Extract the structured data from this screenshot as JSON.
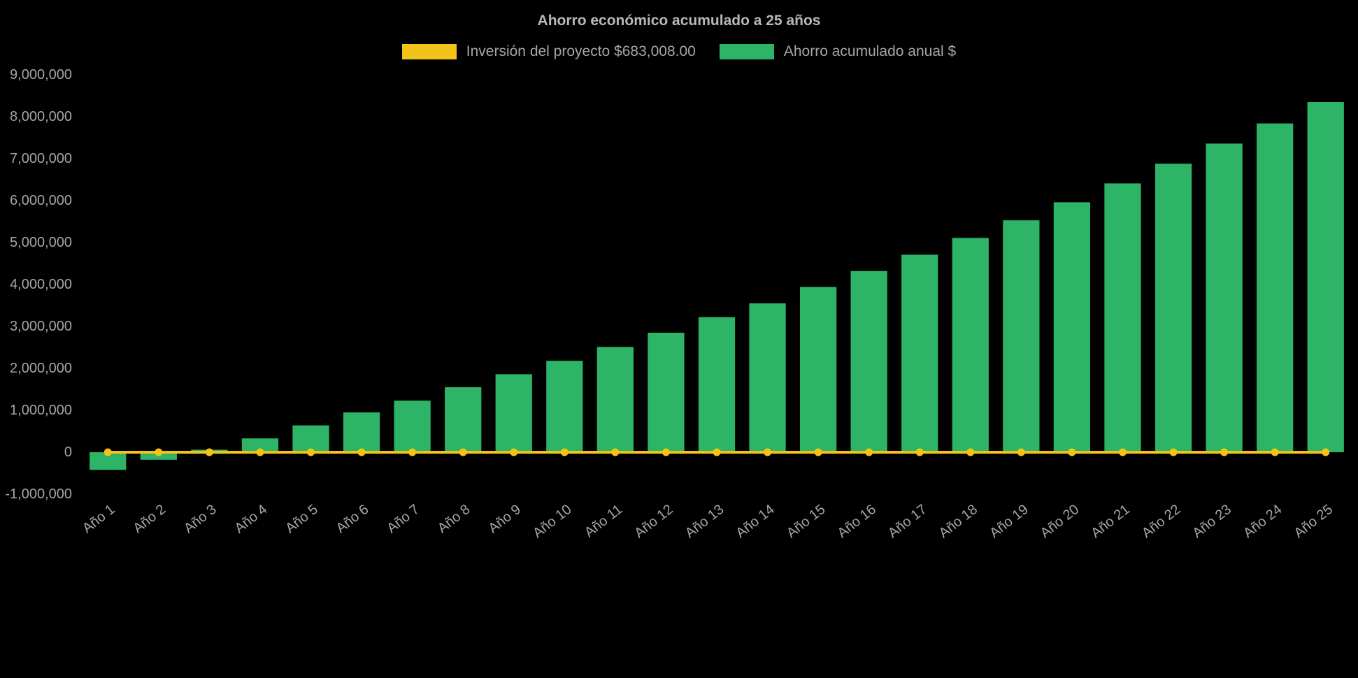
{
  "chart_data": {
    "type": "bar",
    "title": "Ahorro económico acumulado a 25 años",
    "categories": [
      "Año 1",
      "Año 2",
      "Año 3",
      "Año 4",
      "Año 5",
      "Año 6",
      "Año 7",
      "Año 8",
      "Año 9",
      "Año 10",
      "Año 11",
      "Año 12",
      "Año 13",
      "Año 14",
      "Año 15",
      "Año 16",
      "Año 17",
      "Año 18",
      "Año 19",
      "Año 20",
      "Año 21",
      "Año 22",
      "Año 23",
      "Año 24",
      "Año 25"
    ],
    "series": [
      {
        "name": "Inversión del proyecto $683,008.00",
        "type": "line",
        "color": "#F2C318",
        "value": 0
      },
      {
        "name": "Ahorro acumulado anual $",
        "type": "bar",
        "color": "#2EB467",
        "values": [
          -420000,
          -180000,
          60000,
          330000,
          640000,
          950000,
          1230000,
          1550000,
          1860000,
          2180000,
          2510000,
          2850000,
          3220000,
          3550000,
          3940000,
          4320000,
          4710000,
          5110000,
          5530000,
          5960000,
          6410000,
          6880000,
          7360000,
          7840000,
          8350000
        ]
      }
    ],
    "ylim": [
      -1000000,
      9000000
    ],
    "ytick_step": 1000000,
    "ytick_labels": [
      "-1,000,000",
      "0",
      "1,000,000",
      "2,000,000",
      "3,000,000",
      "4,000,000",
      "5,000,000",
      "6,000,000",
      "7,000,000",
      "8,000,000",
      "9,000,000"
    ],
    "grid": false,
    "legend_position": "top",
    "background_color": "#000000",
    "text_color": "#a6a6a6",
    "title_color": "#b8b8b8"
  }
}
